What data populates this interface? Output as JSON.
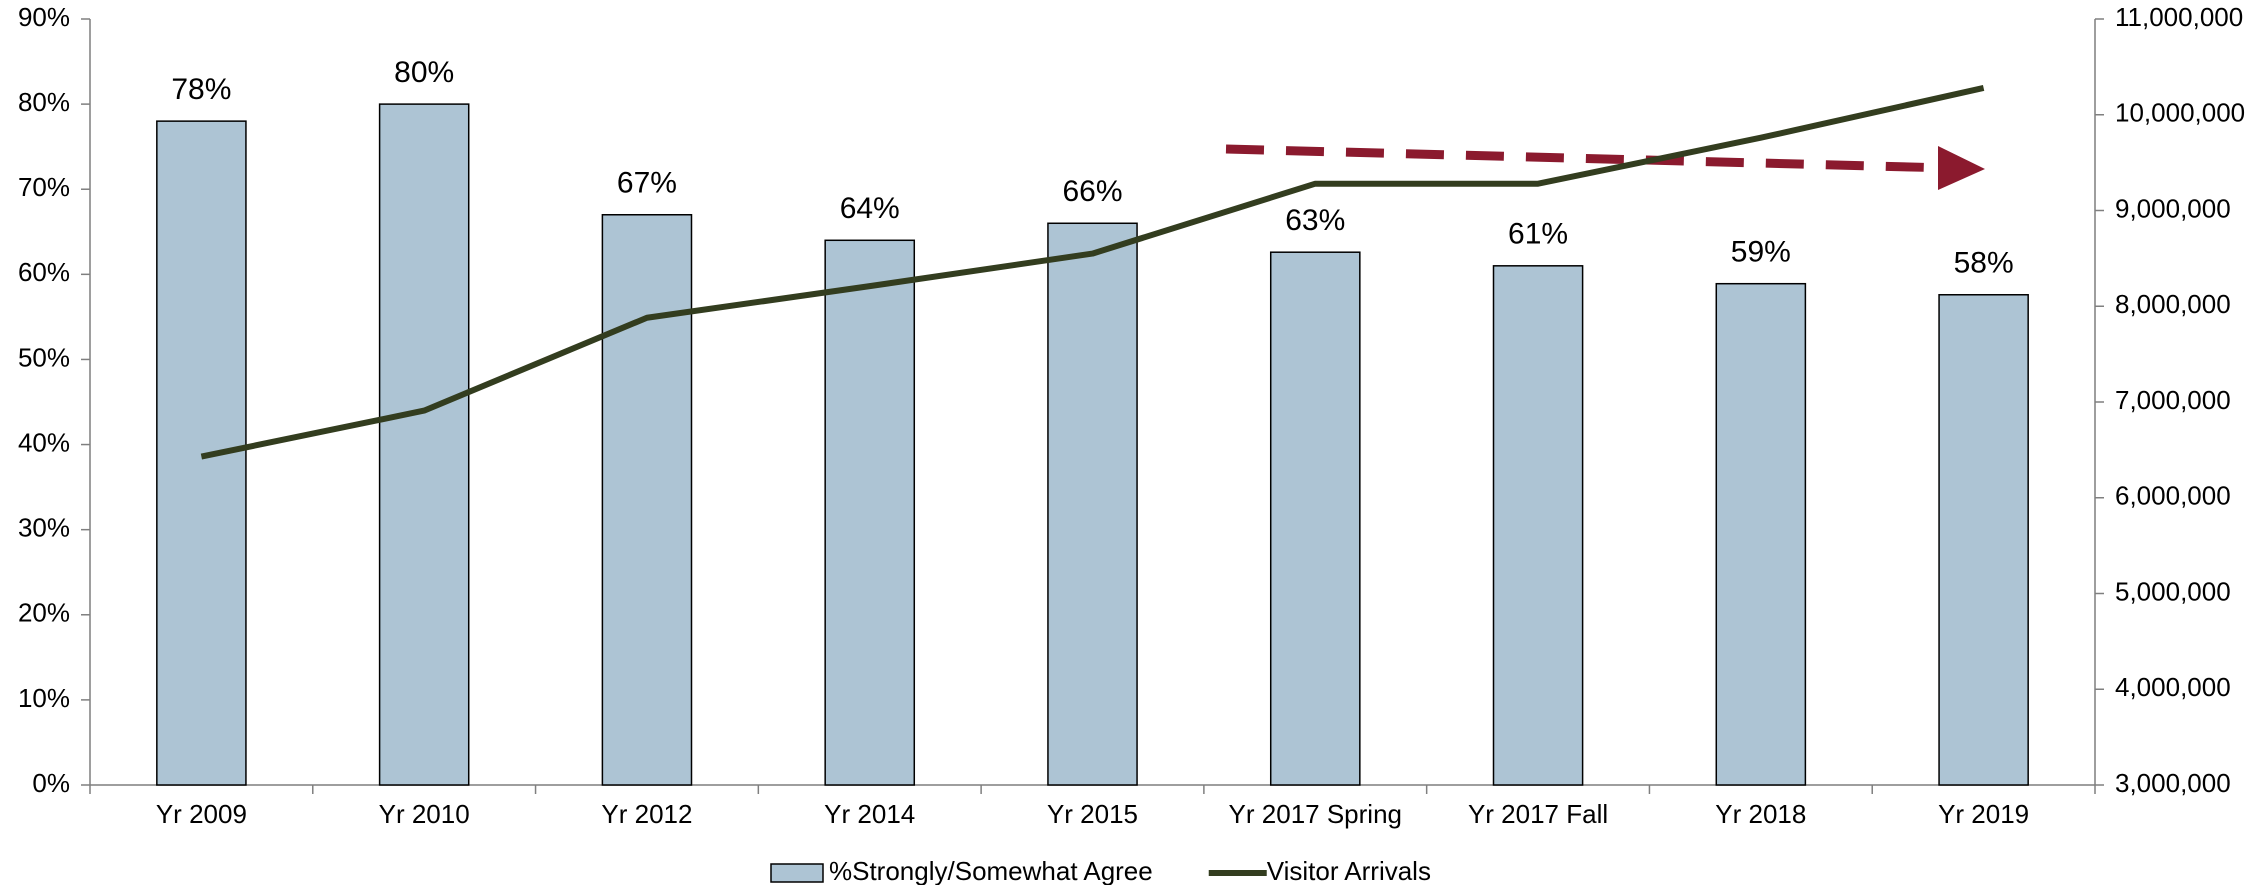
{
  "chart_data": {
    "type": "bar",
    "categories": [
      "Yr 2009",
      "Yr 2010",
      "Yr 2012",
      "Yr 2014",
      "Yr 2015",
      "Yr 2017 Spring",
      "Yr 2017 Fall",
      "Yr 2018",
      "Yr 2019"
    ],
    "series": [
      {
        "name": "%Strongly/Somewhat Agree",
        "type": "bar",
        "color": "#adc4d4",
        "values": [
          78,
          80,
          67,
          64,
          66,
          62.6,
          61,
          58.9,
          57.6
        ],
        "value_labels": [
          "78%",
          "80%",
          "67%",
          "64%",
          "66%",
          "63%",
          "61%",
          "59%",
          "58%"
        ]
      },
      {
        "name": "Visitor Arrivals",
        "type": "line",
        "axis": "y2",
        "color": "#333d1f",
        "values": [
          6430000,
          6910000,
          7880000,
          8210000,
          8550000,
          9280000,
          9280000,
          9760000,
          10280000
        ]
      }
    ],
    "ylim": [
      0,
      90
    ],
    "yticks": [
      {
        "value": 0,
        "label": "0%"
      },
      {
        "value": 10,
        "label": "10%"
      },
      {
        "value": 20,
        "label": "20%"
      },
      {
        "value": 30,
        "label": "30%"
      },
      {
        "value": 40,
        "label": "40%"
      },
      {
        "value": 50,
        "label": "50%"
      },
      {
        "value": 60,
        "label": "60%"
      },
      {
        "value": 70,
        "label": "70%"
      },
      {
        "value": 80,
        "label": "80%"
      },
      {
        "value": 90,
        "label": "90%"
      }
    ],
    "y2lim": [
      3000000,
      11000000
    ],
    "y2ticks": [
      {
        "value": 3000000,
        "label": "3,000,000"
      },
      {
        "value": 4000000,
        "label": "4,000,000"
      },
      {
        "value": 5000000,
        "label": "5,000,000"
      },
      {
        "value": 6000000,
        "label": "6,000,000"
      },
      {
        "value": 7000000,
        "label": "7,000,000"
      },
      {
        "value": 8000000,
        "label": "8,000,000"
      },
      {
        "value": 9000000,
        "label": "9,000,000"
      },
      {
        "value": 10000000,
        "label": "10,000,000"
      },
      {
        "value": 11000000,
        "label": "11,000,000"
      }
    ],
    "grid": false,
    "legend": "bottom"
  }
}
